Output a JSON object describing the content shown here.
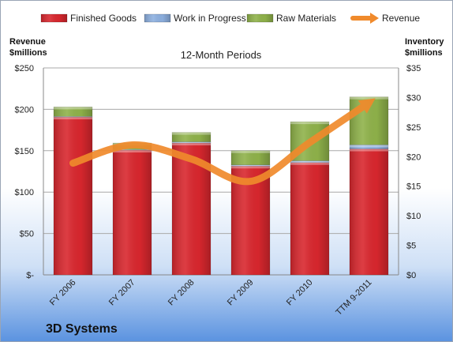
{
  "chart_data": {
    "type": "bar",
    "title": "12-Month Periods",
    "company": "3D Systems",
    "categories": [
      "FY 2006",
      "FY 2007",
      "FY 2008",
      "FY 2009",
      "FY 2010",
      "TTM 9-2011"
    ],
    "series": [
      {
        "name": "Finished Goods",
        "axis": "right",
        "stacked": true,
        "color": "#d9272e",
        "values": [
          26.7,
          21.1,
          22.3,
          18.4,
          19.0,
          21.3
        ]
      },
      {
        "name": "Work in Progress",
        "axis": "right",
        "stacked": true,
        "color": "#8db0e0",
        "values": [
          0.1,
          0.1,
          0.2,
          0.2,
          0.3,
          0.7
        ]
      },
      {
        "name": "Raw Materials",
        "axis": "right",
        "stacked": true,
        "color": "#8fb24a",
        "values": [
          1.6,
          1.1,
          1.6,
          2.4,
          6.6,
          8.1
        ]
      },
      {
        "name": "Revenue",
        "axis": "left",
        "type": "line",
        "color": "#f08a2c",
        "values": [
          135,
          157,
          140,
          113,
          160,
          208
        ]
      }
    ],
    "left_axis": {
      "label_line1": "Revenue",
      "label_line2": "$millions",
      "ylim": [
        0,
        250
      ],
      "ticks": [
        0,
        50,
        100,
        150,
        200,
        250
      ],
      "tick_labels": [
        "$-",
        "$50",
        "$100",
        "$150",
        "$200",
        "$250"
      ]
    },
    "right_axis": {
      "label_line1": "Inventory",
      "label_line2": "$millions",
      "ylim": [
        0,
        35
      ],
      "ticks": [
        0,
        5,
        10,
        15,
        20,
        25,
        30,
        35
      ],
      "tick_labels": [
        "$0",
        "$5",
        "$10",
        "$15",
        "$20",
        "$25",
        "$30",
        "$35"
      ]
    },
    "grid": true,
    "legend_position": "top"
  }
}
